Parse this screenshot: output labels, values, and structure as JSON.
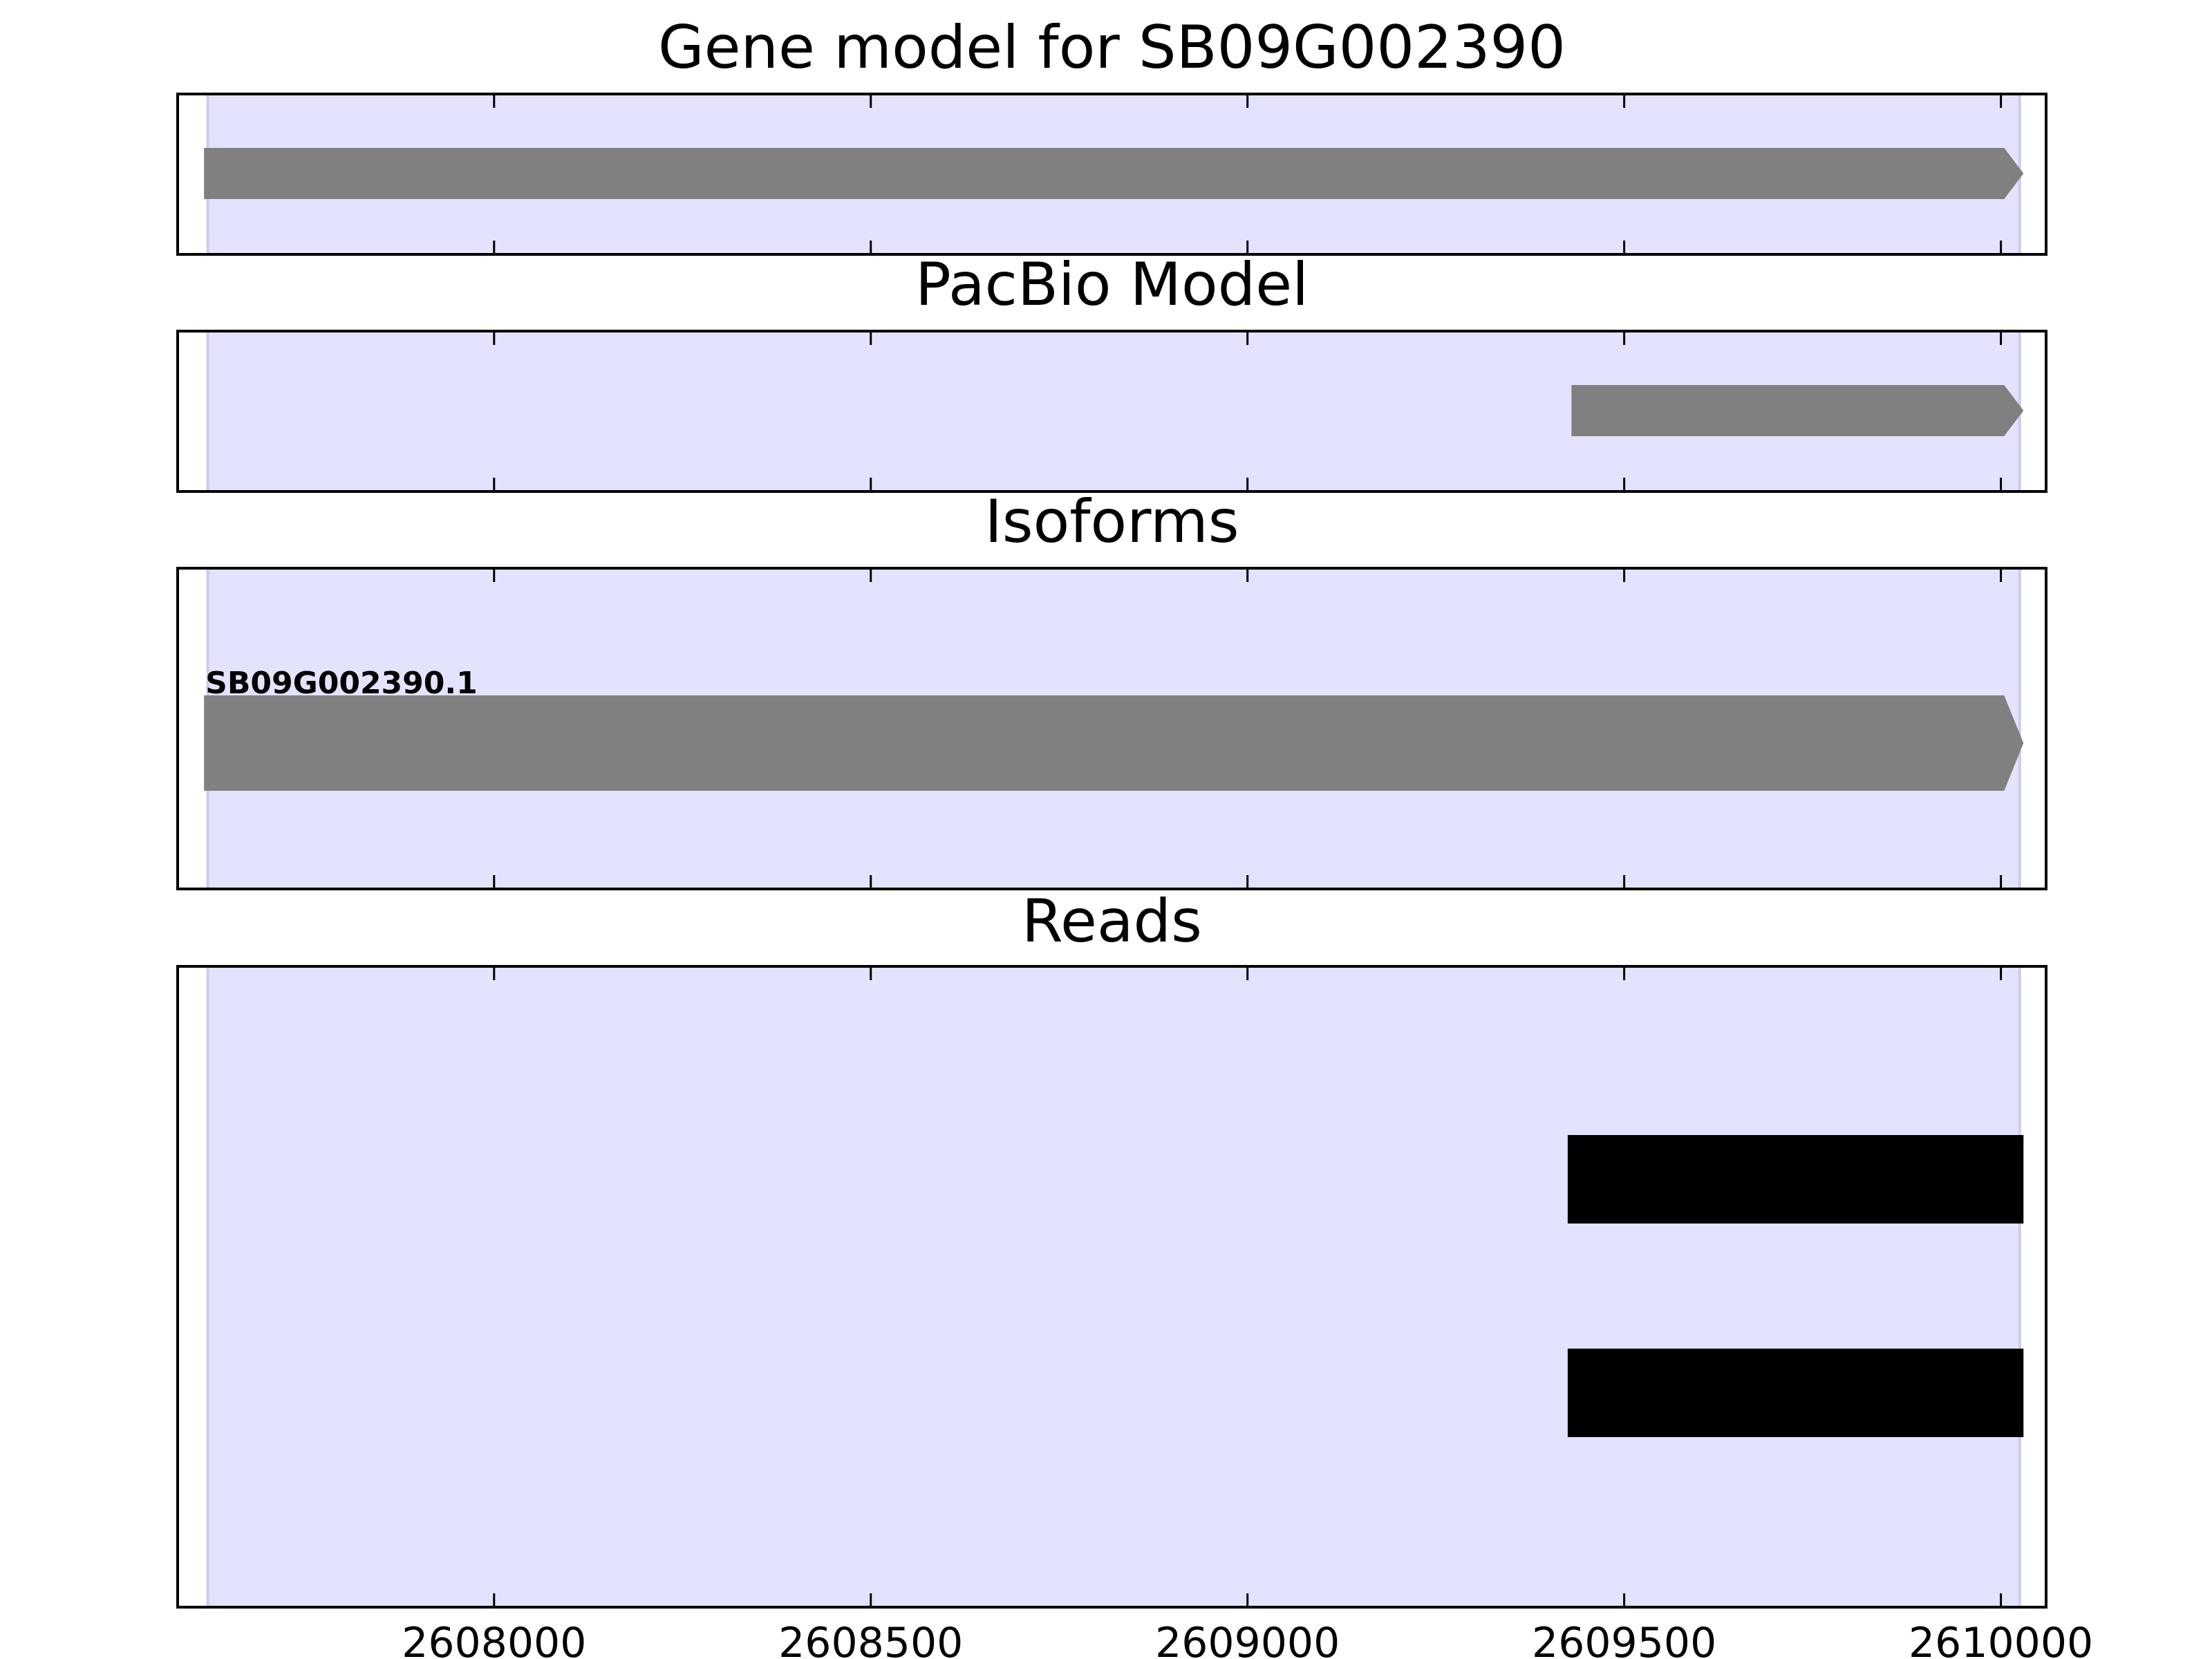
{
  "colors": {
    "background": "#ffffff",
    "panel_shading": "#e3e3fd",
    "shading_edge": "#ccccf0",
    "gene_feature": "#808080",
    "read_feature": "#000000",
    "axes": "#000000"
  },
  "chart_data": [
    {
      "type": "gene-track",
      "title": "Gene model for SB09G002390",
      "xlim": [
        2607580,
        2610060
      ],
      "xticks": [
        2608000,
        2608500,
        2609000,
        2609500,
        2610000
      ],
      "show_tick_labels": false,
      "shaded_region": [
        2607620,
        2610025
      ],
      "features": [
        {
          "kind": "exon-arrow",
          "start": 2607615,
          "end": 2610030,
          "strand": "+",
          "label": ""
        }
      ]
    },
    {
      "type": "gene-track",
      "title": "PacBio Model",
      "xlim": [
        2607580,
        2610060
      ],
      "xticks": [
        2608000,
        2608500,
        2609000,
        2609500,
        2610000
      ],
      "show_tick_labels": false,
      "shaded_region": [
        2607620,
        2610025
      ],
      "features": [
        {
          "kind": "exon-arrow",
          "start": 2609430,
          "end": 2610030,
          "strand": "+",
          "label": ""
        }
      ]
    },
    {
      "type": "gene-track",
      "title": "Isoforms",
      "xlim": [
        2607580,
        2610060
      ],
      "xticks": [
        2608000,
        2608500,
        2609000,
        2609500,
        2610000
      ],
      "show_tick_labels": false,
      "shaded_region": [
        2607620,
        2610025
      ],
      "features": [
        {
          "kind": "exon-arrow",
          "start": 2607615,
          "end": 2610030,
          "strand": "+",
          "label": "SB09G002390.1"
        }
      ]
    },
    {
      "type": "read-track",
      "title": "Reads",
      "xlim": [
        2607580,
        2610060
      ],
      "xticks": [
        2608000,
        2608500,
        2609000,
        2609500,
        2610000
      ],
      "xtick_labels": [
        "2608000",
        "2608500",
        "2609000",
        "2609500",
        "2610000"
      ],
      "show_tick_labels": true,
      "shaded_region": [
        2607620,
        2610025
      ],
      "features": [
        {
          "kind": "read",
          "start": 2609425,
          "end": 2610030
        },
        {
          "kind": "read",
          "start": 2609425,
          "end": 2610030
        }
      ]
    }
  ]
}
